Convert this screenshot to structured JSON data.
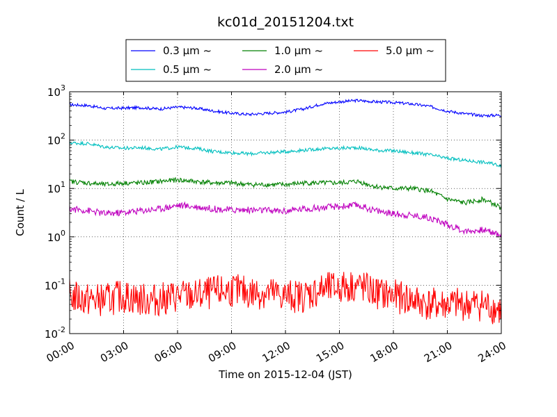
{
  "chart_data": {
    "type": "line",
    "title": "kc01d_20151204.txt",
    "xlabel": "Time on 2015-12-04 (JST)",
    "ylabel": "Count / L",
    "y_scale": "log",
    "ylim": [
      0.01,
      1000
    ],
    "xlim": [
      "00:00",
      "24:00"
    ],
    "x_ticks": [
      "00:00",
      "03:00",
      "06:00",
      "09:00",
      "12:00",
      "15:00",
      "18:00",
      "21:00",
      "24:00"
    ],
    "y_ticks": [
      {
        "base": "10",
        "exp": "-2"
      },
      {
        "base": "10",
        "exp": "-1"
      },
      {
        "base": "10",
        "exp": "0"
      },
      {
        "base": "10",
        "exp": "1"
      },
      {
        "base": "10",
        "exp": "2"
      },
      {
        "base": "10",
        "exp": "3"
      }
    ],
    "grid": true,
    "legend_position": "above plot",
    "x": [
      "00:00",
      "01:00",
      "02:00",
      "03:00",
      "04:00",
      "05:00",
      "06:00",
      "07:00",
      "08:00",
      "09:00",
      "10:00",
      "11:00",
      "12:00",
      "13:00",
      "14:00",
      "15:00",
      "16:00",
      "17:00",
      "18:00",
      "19:00",
      "20:00",
      "21:00",
      "22:00",
      "23:00",
      "24:00"
    ],
    "series": [
      {
        "name": "0.3 μm ~",
        "color": "#0000ff",
        "values": [
          540,
          520,
          450,
          460,
          470,
          440,
          480,
          460,
          400,
          360,
          340,
          360,
          380,
          440,
          560,
          620,
          660,
          620,
          600,
          560,
          500,
          400,
          350,
          320,
          330
        ]
      },
      {
        "name": "0.5 μm ~",
        "color": "#00bfbf",
        "values": [
          88,
          85,
          72,
          68,
          70,
          65,
          72,
          68,
          58,
          55,
          52,
          55,
          58,
          62,
          66,
          68,
          70,
          62,
          60,
          55,
          50,
          42,
          38,
          35,
          30
        ]
      },
      {
        "name": "1.0 μm ~",
        "color": "#008000",
        "values": [
          14,
          13,
          12,
          13,
          13,
          14,
          15,
          14,
          13,
          13,
          12,
          12,
          12,
          13,
          13,
          13,
          14,
          11,
          10,
          10,
          9,
          6,
          5,
          6,
          4
        ]
      },
      {
        "name": "2.0 μm ~",
        "color": "#bf00bf",
        "values": [
          3.8,
          3.5,
          3.0,
          3.2,
          3.5,
          3.8,
          4.5,
          4.2,
          3.8,
          3.6,
          3.6,
          3.5,
          3.4,
          3.8,
          4.0,
          4.2,
          4.5,
          3.5,
          3.0,
          2.8,
          2.5,
          1.8,
          1.3,
          1.4,
          1.1
        ]
      },
      {
        "name": "5.0 μm ~",
        "color": "#ff0000",
        "values": [
          0.06,
          0.05,
          0.05,
          0.06,
          0.05,
          0.05,
          0.06,
          0.06,
          0.07,
          0.08,
          0.07,
          0.07,
          0.06,
          0.06,
          0.08,
          0.09,
          0.1,
          0.07,
          0.06,
          0.05,
          0.04,
          0.04,
          0.04,
          0.04,
          0.03
        ]
      }
    ]
  }
}
